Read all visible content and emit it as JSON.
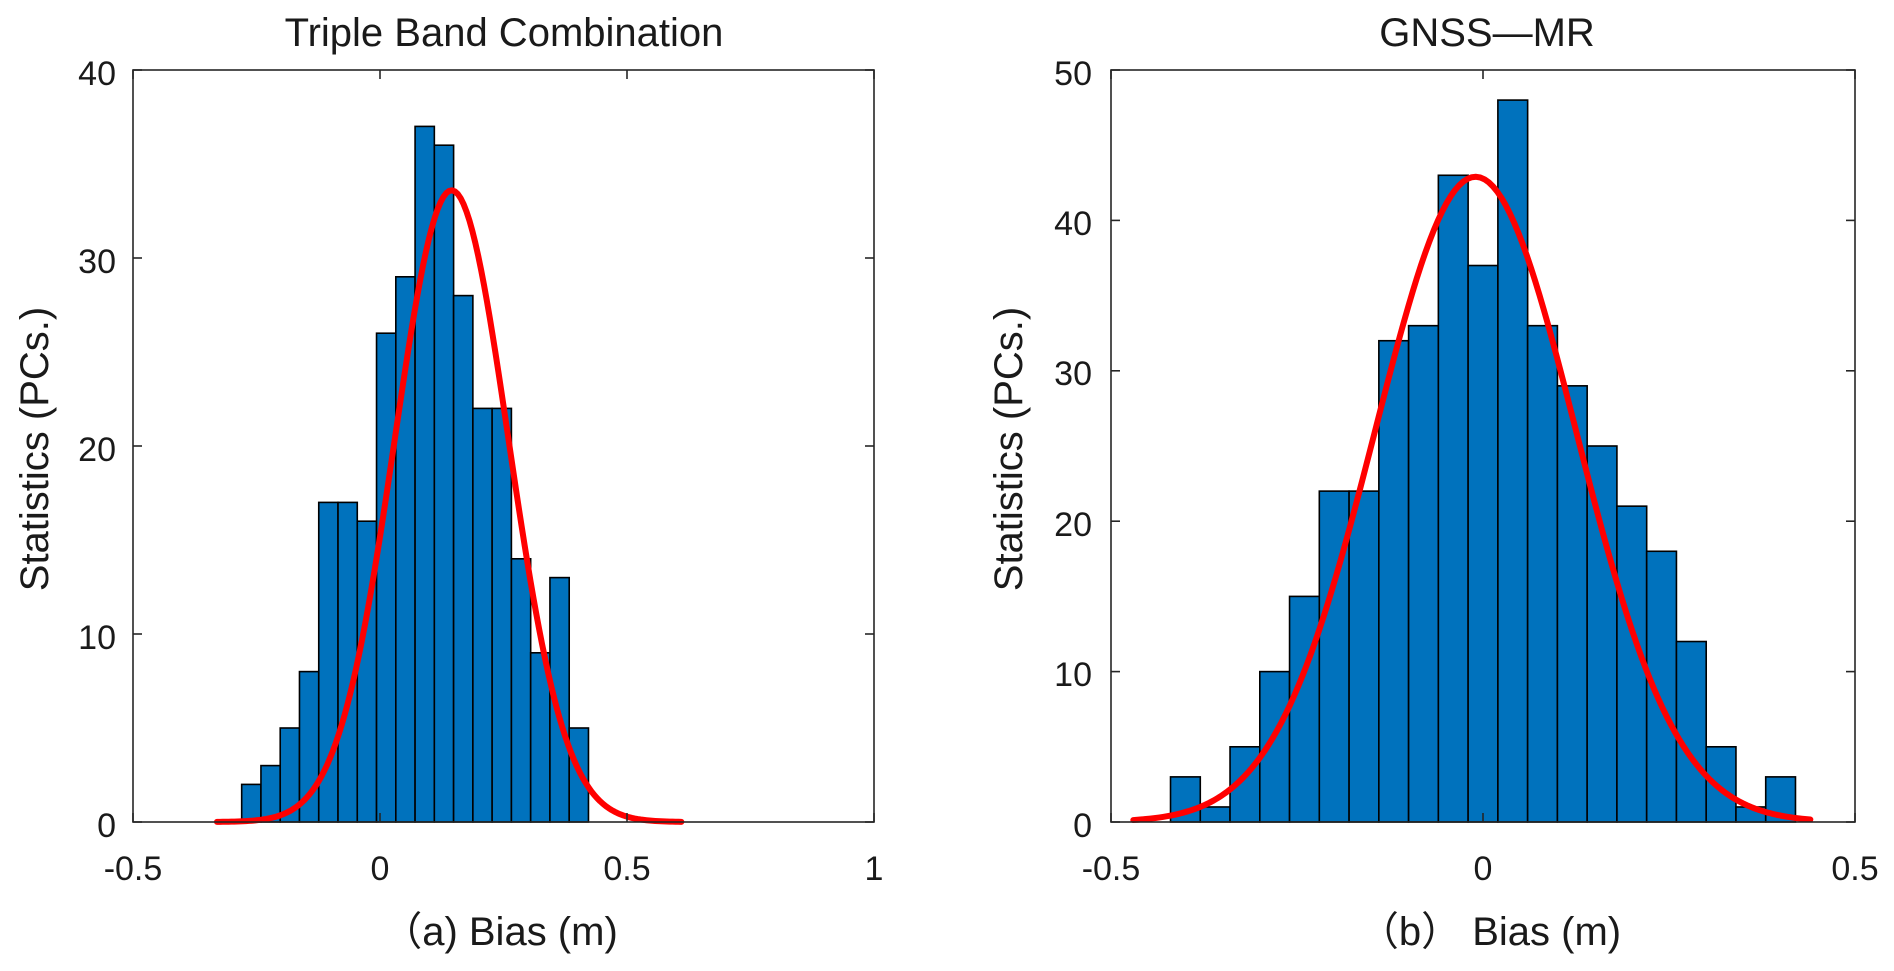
{
  "chart_data": [
    {
      "type": "bar",
      "title": "Triple Band Combination",
      "xlabel": "（a) Bias (m)",
      "ylabel": "Statistics (PCs.)",
      "xlim": [
        -0.5,
        1
      ],
      "ylim": [
        0,
        40
      ],
      "xticks": [
        "-0.5",
        "0",
        "0.5",
        "1"
      ],
      "yticks": [
        "0",
        "10",
        "20",
        "30",
        "40"
      ],
      "grid": false,
      "bar_color": "#0072BD",
      "bin_start": -0.28,
      "bin_width": 0.039,
      "values": [
        2,
        3,
        5,
        8,
        17,
        17,
        16,
        26,
        29,
        37,
        36,
        28,
        22,
        22,
        14,
        9,
        13,
        5
      ],
      "fit": {
        "type": "normal",
        "mean": 0.145,
        "std": 0.115,
        "peak": 33.6,
        "x_range": [
          -0.33,
          0.61
        ],
        "color": "#FF0000"
      }
    },
    {
      "type": "bar",
      "title": "GNSS—MR",
      "xlabel": "（b） Bias (m)",
      "ylabel": "Statistics (PCs.)",
      "xlim": [
        -0.5,
        0.5
      ],
      "ylim": [
        0,
        50
      ],
      "xticks": [
        "-0.5",
        "0",
        "0.5"
      ],
      "yticks": [
        "0",
        "10",
        "20",
        "30",
        "40",
        "50"
      ],
      "grid": false,
      "bar_color": "#0072BD",
      "bin_start": -0.42,
      "bin_width": 0.04,
      "values": [
        3,
        1,
        5,
        10,
        15,
        22,
        22,
        32,
        33,
        43,
        37,
        48,
        33,
        29,
        25,
        21,
        18,
        12,
        5,
        1,
        3
      ],
      "fit": {
        "type": "normal",
        "mean": -0.01,
        "std": 0.135,
        "peak": 42.9,
        "x_range": [
          -0.47,
          0.44
        ],
        "color": "#FF0000"
      }
    }
  ]
}
